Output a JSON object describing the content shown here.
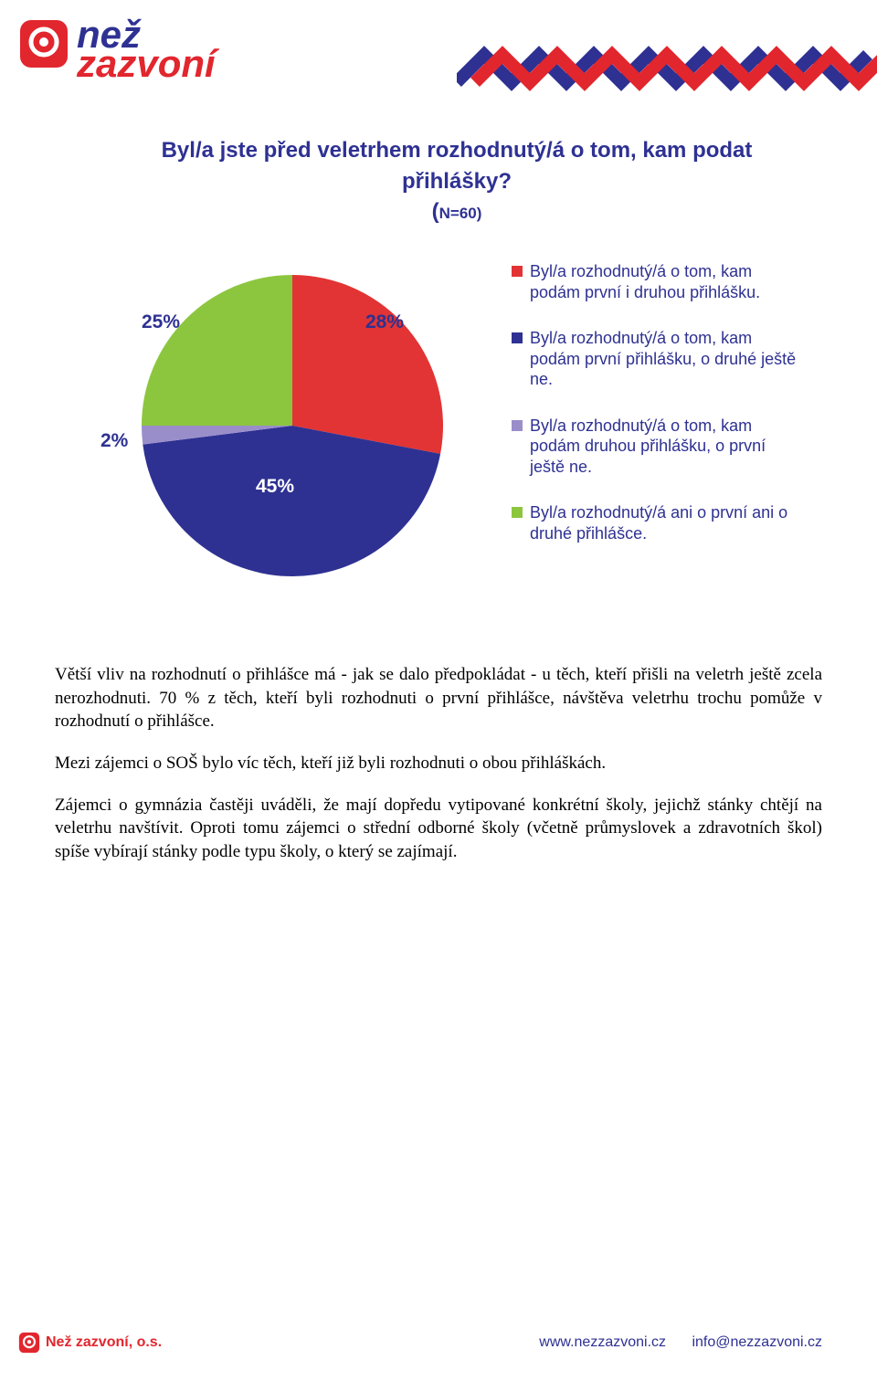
{
  "brand": {
    "line1": "než",
    "line2": "zazvoní",
    "logo_bg_color": "#e2262e",
    "logo_ring_color": "#ffffff",
    "line1_color": "#2e3192",
    "line2_color": "#e2262e"
  },
  "zigzag": {
    "color_back": "#2e3192",
    "color_front": "#e2262e",
    "stroke_width": 14
  },
  "chart": {
    "type": "pie",
    "title_line1": "Byl/a jste před veletrhem rozhodnutý/á o tom, kam podat",
    "title_line2": "přihlášky?",
    "subtitle_prefix": "(",
    "subtitle_n": "N=60)",
    "title_color": "#2e3192",
    "title_fontsize": 24,
    "slices": [
      {
        "key": "first_and_second",
        "value": 28,
        "color": "#e23434",
        "label_pct": "28%"
      },
      {
        "key": "first_only",
        "value": 45,
        "color": "#2e3192",
        "label_pct": "45%"
      },
      {
        "key": "second_only",
        "value": 2,
        "color": "#9a8eca",
        "label_pct": "2%"
      },
      {
        "key": "neither",
        "value": 25,
        "color": "#8cc63f",
        "label_pct": "25%"
      }
    ],
    "label_fontsize": 21,
    "label_color": "#2e3192",
    "pie_radius": 165,
    "background_color": "#ffffff"
  },
  "legend": {
    "fontsize": 18,
    "color": "#2e3192",
    "items": [
      {
        "swatch": "#e23434",
        "text": "Byl/a rozhodnutý/á o tom, kam podám první i druhou přihlášku."
      },
      {
        "swatch": "#2e3192",
        "text": "Byl/a rozhodnutý/á o tom, kam podám první přihlášku, o druhé ještě ne."
      },
      {
        "swatch": "#9a8eca",
        "text": "Byl/a rozhodnutý/á o tom, kam podám druhou přihlášku, o první ještě ne."
      },
      {
        "swatch": "#8cc63f",
        "text": "Byl/a rozhodnutý/á ani o první ani o druhé přihlášce."
      }
    ]
  },
  "paragraphs": [
    "Větší vliv na rozhodnutí o přihlášce má - jak se dalo předpokládat - u těch, kteří přišli na veletrh ještě zcela nerozhodnuti. 70 % z těch, kteří byli rozhodnuti o první přihlášce, návštěva veletrhu trochu pomůže v rozhodnutí o přihlášce.",
    "Mezi zájemci o SOŠ bylo víc těch, kteří již byli rozhodnuti o obou přihláškách.",
    "Zájemci o gymnázia častěji uváděli, že mají dopředu vytipované konkrétní školy, jejichž stánky chtějí na veletrhu navštívit. Oproti tomu zájemci o střední odborné školy (včetně průmyslovek a zdravotních škol) spíše vybírají stánky podle typu školy, o který se zajímají."
  ],
  "footer": {
    "org": "Než zazvoní, o.s.",
    "url": "www.nezzazvoni.cz",
    "email": "info@nezzazvoni.cz",
    "org_color": "#e2262e",
    "link_color": "#2e3192"
  }
}
